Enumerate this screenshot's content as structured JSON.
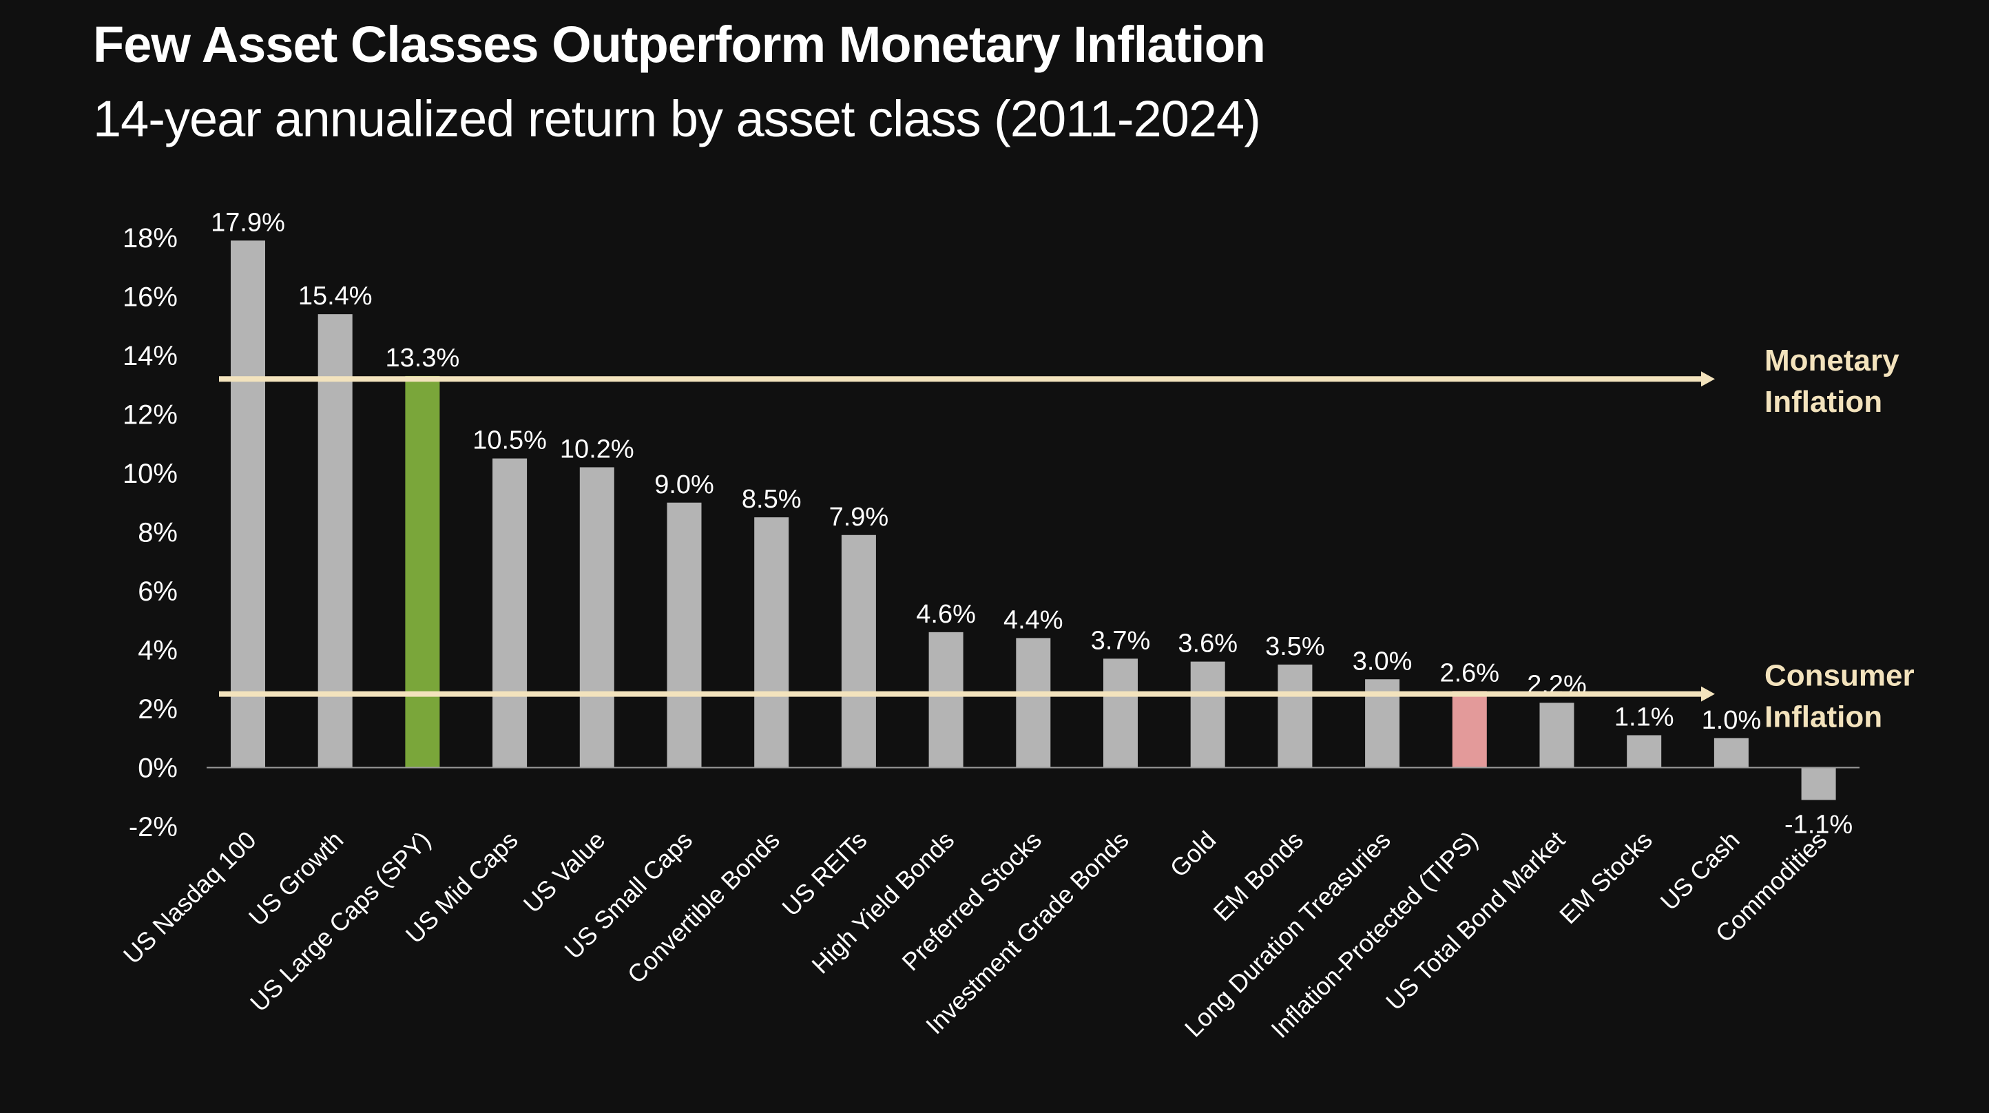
{
  "header": {
    "title": "Few Asset Classes Outperform Monetary Inflation",
    "subtitle": "14-year annualized return by asset class (2011-2024)"
  },
  "colors": {
    "background": "#101010",
    "default_bar": "#b4b4b4",
    "highlight_green": "#7aa63a",
    "highlight_pink": "#e39a9a",
    "reference_line": "#f3e3bd",
    "reference_label": "#f3e3bd",
    "text": "#ffffff"
  },
  "chart_data": {
    "type": "bar",
    "title": "Few Asset Classes Outperform Monetary Inflation",
    "subtitle": "14-year annualized return by asset class (2011-2024)",
    "xlabel": "",
    "ylabel": "",
    "ylim": [
      -2,
      18
    ],
    "yticks": [
      18,
      16,
      14,
      12,
      10,
      8,
      6,
      4,
      2,
      0,
      -2
    ],
    "ytick_labels": [
      "18%",
      "16%",
      "14%",
      "12%",
      "10%",
      "8%",
      "6%",
      "4%",
      "2%",
      "0%",
      "-2%"
    ],
    "grid": false,
    "categories": [
      "US Nasdaq 100",
      "US Growth",
      "US Large Caps (SPY)",
      "US Mid Caps",
      "US Value",
      "US Small Caps",
      "Convertible Bonds",
      "US REITs",
      "High Yield Bonds",
      "Preferred Stocks",
      "Investment Grade Bonds",
      "Gold",
      "EM Bonds",
      "Long Duration Treasuries",
      "Inflation-Protected (TIPS)",
      "US Total Bond Market",
      "EM Stocks",
      "US Cash",
      "Commodities"
    ],
    "values": [
      17.9,
      15.4,
      13.3,
      10.5,
      10.2,
      9.0,
      8.5,
      7.9,
      4.6,
      4.4,
      3.7,
      3.6,
      3.5,
      3.0,
      2.6,
      2.2,
      1.1,
      1.0,
      -1.1
    ],
    "data_labels": [
      "17.9%",
      "15.4%",
      "13.3%",
      "10.5%",
      "10.2%",
      "9.0%",
      "8.5%",
      "7.9%",
      "4.6%",
      "4.4%",
      "3.7%",
      "3.6%",
      "3.5%",
      "3.0%",
      "2.6%",
      "2.2%",
      "1.1%",
      "1.0%",
      "-1.1%"
    ],
    "bar_colors": [
      "default",
      "default",
      "green",
      "default",
      "default",
      "default",
      "default",
      "default",
      "default",
      "default",
      "default",
      "default",
      "default",
      "default",
      "pink",
      "default",
      "default",
      "default",
      "default"
    ],
    "reference_lines": [
      {
        "value": 13.2,
        "label_line1": "Monetary",
        "label_line2": "Inflation"
      },
      {
        "value": 2.5,
        "label_line1": "Consumer",
        "label_line2": "Inflation"
      }
    ]
  }
}
